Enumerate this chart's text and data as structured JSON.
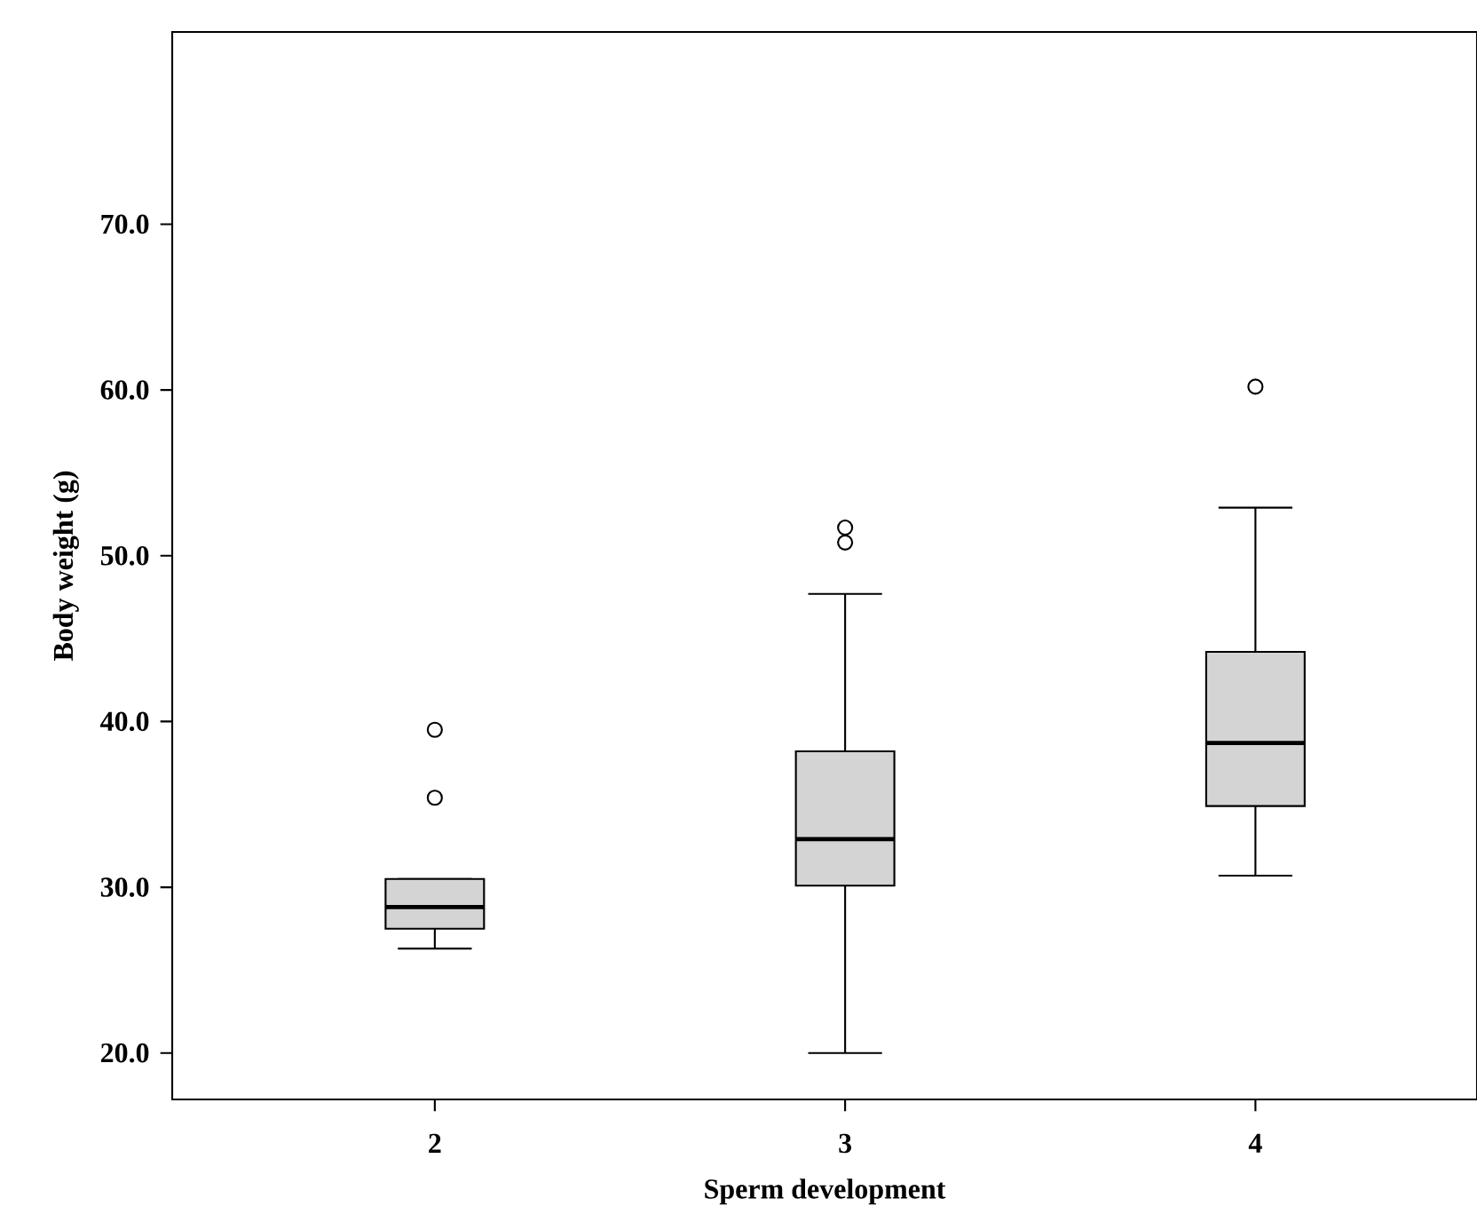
{
  "chart_data": {
    "type": "box",
    "xlabel": "Sperm development",
    "ylabel": "Body weight (g)",
    "categories": [
      "2",
      "3",
      "4"
    ],
    "color": "#d4d4d4",
    "boxes": [
      {
        "low": 26.3,
        "q1": 27.5,
        "median": 28.8,
        "q3": 30.5,
        "high": 30.5,
        "outliers": [
          35.4,
          39.5
        ]
      },
      {
        "low": 20.0,
        "q1": 30.1,
        "median": 32.9,
        "q3": 38.2,
        "high": 47.7,
        "outliers": [
          50.8,
          51.7
        ]
      },
      {
        "low": 30.7,
        "q1": 34.9,
        "median": 38.7,
        "q3": 44.2,
        "high": 52.9,
        "outliers": [
          60.2
        ]
      }
    ],
    "ylim": [
      17.2,
      81.6
    ],
    "yticks": [
      {
        "value": 20,
        "label": "20.0"
      },
      {
        "value": 30,
        "label": "30.0"
      },
      {
        "value": 40,
        "label": "40.0"
      },
      {
        "value": 50,
        "label": "50.0"
      },
      {
        "value": 60,
        "label": "60.0"
      },
      {
        "value": 70,
        "label": "70.0"
      }
    ],
    "grid": false
  }
}
